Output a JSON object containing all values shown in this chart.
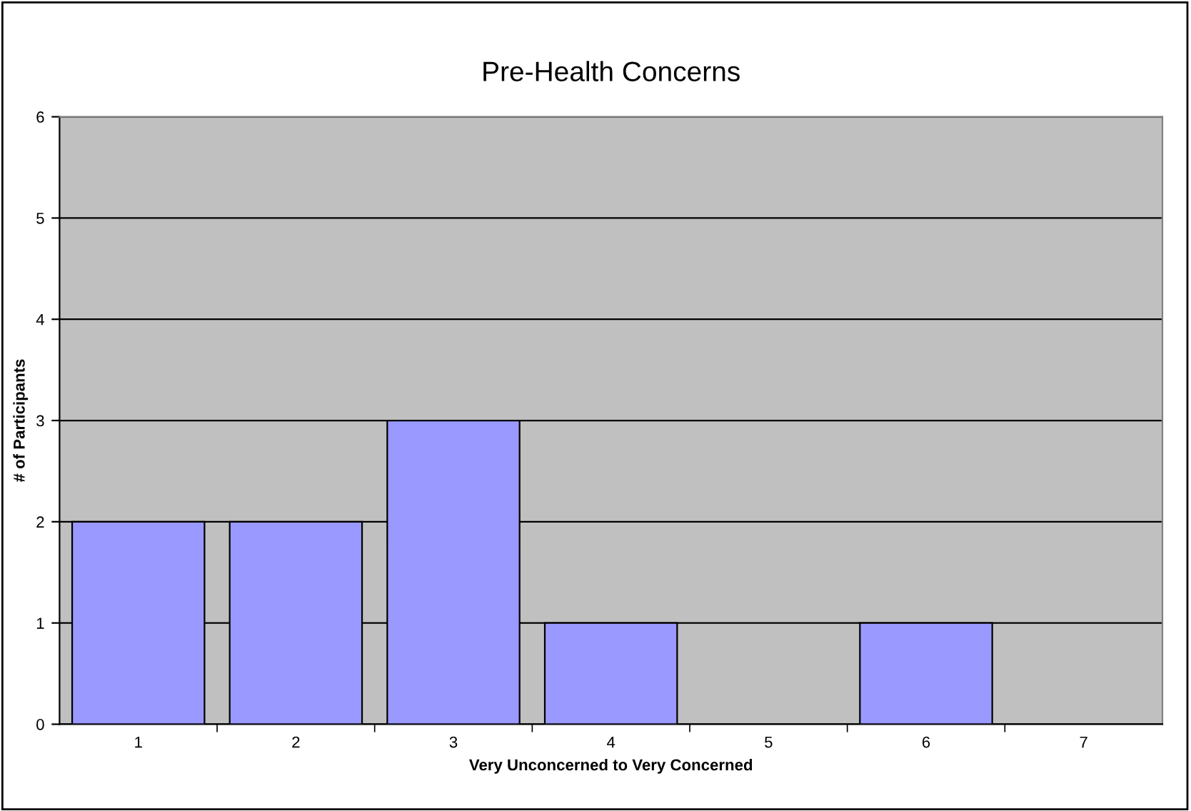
{
  "chart_data": {
    "type": "bar",
    "title": "Pre-Health Concerns",
    "xlabel": "Very Unconcerned to Very Concerned",
    "ylabel": "# of Participants",
    "categories": [
      "1",
      "2",
      "3",
      "4",
      "5",
      "6",
      "7"
    ],
    "values": [
      2,
      2,
      3,
      1,
      0,
      1,
      0
    ],
    "color": "#9999ff",
    "ylim": [
      0,
      6
    ],
    "yticks": [
      0,
      1,
      2,
      3,
      4,
      5,
      6
    ],
    "grid": "y"
  }
}
